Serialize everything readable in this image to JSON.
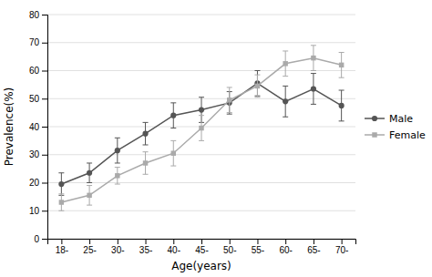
{
  "chart_data": {
    "type": "line",
    "categories": [
      "18-",
      "25-",
      "30-",
      "35-",
      "40-",
      "45-",
      "50-",
      "55-",
      "60-",
      "65-",
      "70-"
    ],
    "xlabel": "Age(years)",
    "ylabel": "Prevalence(%)",
    "ylim": [
      0,
      80
    ],
    "yticks": [
      0,
      10,
      20,
      30,
      40,
      50,
      60,
      70,
      80
    ],
    "grid": true,
    "legend": "right",
    "series": [
      {
        "name": "Male",
        "color": "#555555",
        "marker": "circle",
        "values": [
          19.5,
          23.5,
          31.5,
          37.5,
          44.0,
          46.0,
          48.5,
          55.5,
          49.0,
          53.5,
          47.5
        ],
        "errors": [
          4.0,
          3.5,
          4.5,
          4.0,
          4.5,
          4.5,
          4.0,
          4.5,
          5.5,
          5.5,
          5.5
        ]
      },
      {
        "name": "Female",
        "color": "#aaaaaa",
        "marker": "square",
        "values": [
          13.0,
          15.5,
          22.5,
          27.0,
          30.5,
          39.5,
          49.5,
          54.5,
          62.5,
          64.5,
          62.0
        ],
        "errors": [
          3.0,
          3.5,
          3.0,
          4.0,
          4.5,
          4.5,
          4.5,
          4.0,
          4.5,
          4.5,
          4.5
        ]
      }
    ]
  }
}
